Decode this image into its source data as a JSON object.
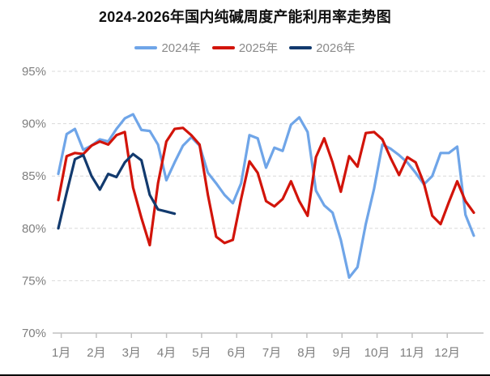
{
  "title": "2024-2026年国内纯碱周度产能利用率走势图",
  "legend": [
    {
      "label": "2024年",
      "color": "#6FA5E8"
    },
    {
      "label": "2025年",
      "color": "#D2140A"
    },
    {
      "label": "2026年",
      "color": "#123A6E"
    }
  ],
  "chart_data": {
    "type": "line",
    "title": "2024-2026年国内纯碱周度产能利用率走势图",
    "xlabel": "",
    "ylabel": "",
    "x_axis": {
      "unit": "week (plotted weekly, labeled by month)",
      "tick_labels": [
        "1月",
        "2月",
        "3月",
        "4月",
        "5月",
        "6月",
        "7月",
        "8月",
        "9月",
        "10月",
        "11月",
        "12月"
      ]
    },
    "y_axis": {
      "unit": "%",
      "min": 70,
      "max": 95,
      "tick_step": 5,
      "tick_labels": [
        "95%",
        "90%",
        "85%",
        "80%",
        "75%",
        "70%"
      ]
    },
    "grid": true,
    "gridline_color": "#d9d9d9",
    "axis_color": "#c0c0c0",
    "legend_position": "top",
    "series": [
      {
        "name": "2024年",
        "color": "#6FA5E8",
        "frequency": "weekly",
        "values": [
          85.2,
          89.0,
          89.5,
          87.5,
          87.9,
          88.5,
          88.3,
          89.5,
          90.5,
          90.9,
          89.4,
          89.3,
          88.0,
          84.6,
          86.3,
          87.9,
          88.7,
          87.9,
          85.3,
          84.3,
          83.2,
          82.4,
          84.3,
          88.9,
          88.6,
          85.8,
          87.7,
          87.4,
          89.9,
          90.6,
          89.2,
          83.6,
          82.2,
          81.5,
          78.9,
          75.3,
          76.3,
          80.4,
          83.8,
          88.0,
          87.6,
          87.0,
          86.3,
          85.3,
          84.2,
          85.0,
          87.2,
          87.2,
          87.8,
          81.3,
          79.3
        ]
      },
      {
        "name": "2025年",
        "color": "#D2140A",
        "frequency": "weekly",
        "values": [
          82.7,
          86.9,
          87.2,
          87.1,
          87.9,
          88.3,
          88.0,
          88.9,
          89.2,
          83.9,
          81.0,
          78.4,
          84.3,
          88.3,
          89.5,
          89.6,
          88.9,
          88.0,
          83.2,
          79.2,
          78.6,
          78.9,
          82.8,
          86.4,
          85.3,
          82.6,
          82.1,
          82.8,
          84.5,
          82.6,
          81.2,
          86.8,
          88.6,
          86.3,
          83.5,
          86.9,
          85.9,
          89.1,
          89.2,
          88.5,
          86.7,
          85.1,
          86.8,
          86.3,
          84.3,
          81.2,
          80.4,
          82.5,
          84.5,
          82.6,
          81.5
        ]
      },
      {
        "name": "2026年",
        "color": "#123A6E",
        "frequency": "weekly",
        "values": [
          80.0,
          83.4,
          86.6,
          87.0,
          85.0,
          83.7,
          85.2,
          84.9,
          86.3,
          87.1,
          86.5,
          83.2,
          81.8,
          81.6,
          81.4
        ]
      }
    ]
  }
}
